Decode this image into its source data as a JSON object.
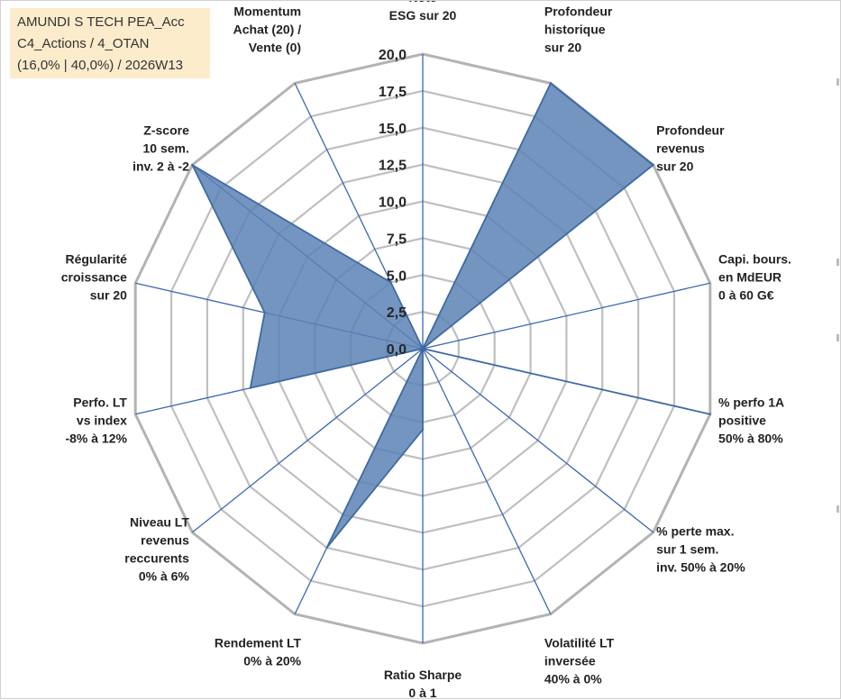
{
  "title_box": {
    "line1": "AMUNDI S TECH PEA_Acc",
    "line2": "C4_Actions / 4_OTAN",
    "line3": "(16,0% | 40,0%) / 2026W13"
  },
  "colors": {
    "series_fill": "#5b82b5",
    "series_stroke": "#3f6aa3",
    "spoke": "#3b68b1",
    "grid": "#bfbfbf",
    "outer_grid": "#b3b3b3",
    "title_box_bg": "#fdeccb"
  },
  "chart_data": {
    "type": "radar",
    "rmin": 0,
    "rmax": 20,
    "tick_step": 2.5,
    "tick_labels": [
      "0,0",
      "2,5",
      "5,0",
      "7,5",
      "10,0",
      "12,5",
      "15,0",
      "17,5",
      "20,0"
    ],
    "axes": [
      {
        "label": [
          "Note",
          "ESG sur 20"
        ],
        "value": 0
      },
      {
        "label": [
          "Profondeur",
          "historique",
          "sur 20"
        ],
        "value": 20
      },
      {
        "label": [
          "Profondeur",
          "revenus",
          "sur 20"
        ],
        "value": 20
      },
      {
        "label": [
          "Capi. bours.",
          "en MdEUR",
          "0 à 60 G€"
        ],
        "value": 0
      },
      {
        "label": [
          "% perfo 1A",
          "positive",
          "50% à 80%"
        ],
        "value": 20
      },
      {
        "label": [
          "% perte max.",
          "sur 1 sem.",
          "inv. 50% à 20%"
        ],
        "value": 0
      },
      {
        "label": [
          "Volatilité LT",
          "inversée",
          "40% à 0%"
        ],
        "value": 0
      },
      {
        "label": [
          "Ratio Sharpe",
          "0 à 1"
        ],
        "value": 5.5
      },
      {
        "label": [
          "Rendement LT",
          "0% à 20%"
        ],
        "value": 15
      },
      {
        "label": [
          "Niveau LT",
          "revenus",
          "reccurents",
          "0% à 6%"
        ],
        "value": 0
      },
      {
        "label": [
          "Perfo. LT",
          "vs index",
          "-8% à 12%"
        ],
        "value": 12
      },
      {
        "label": [
          "Régularité",
          "croissance",
          "sur 20"
        ],
        "value": 11
      },
      {
        "label": [
          "Z-score",
          "10 sem.",
          "inv. 2 à -2"
        ],
        "value": 20
      },
      {
        "label": [
          "Momentum",
          "Achat (20) /",
          "Vente (0)"
        ],
        "value": 5
      }
    ]
  }
}
